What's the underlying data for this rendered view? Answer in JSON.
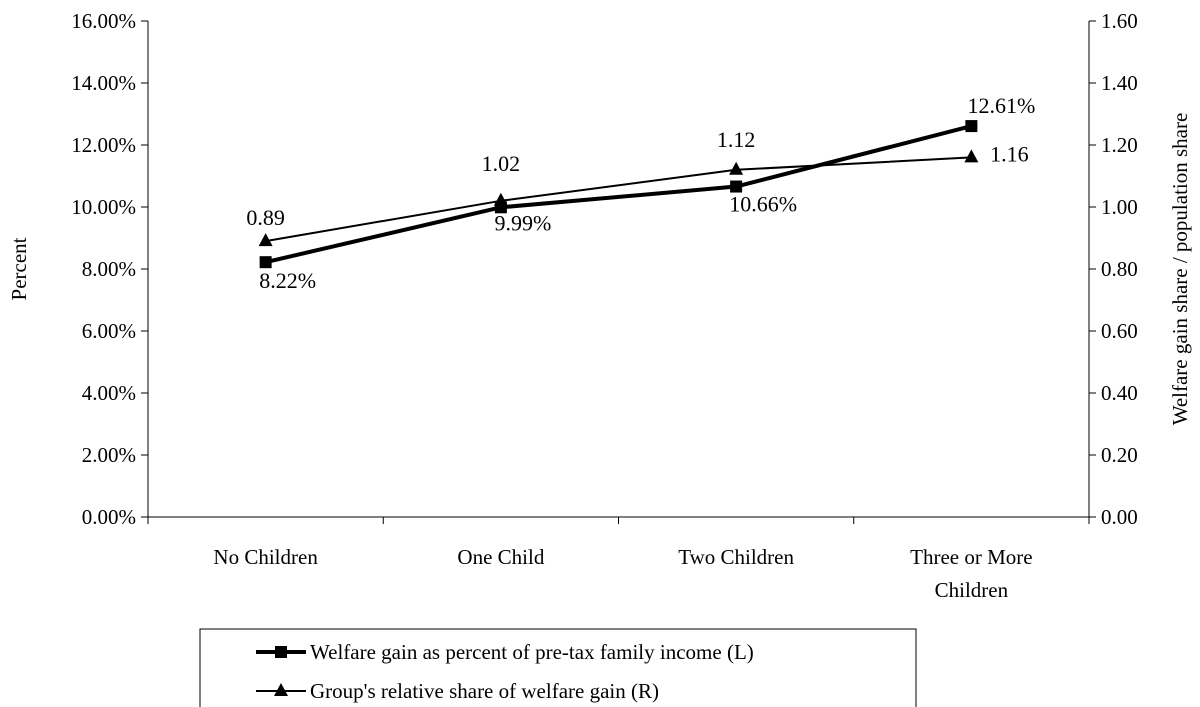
{
  "chart_data": {
    "type": "line",
    "categories": [
      [
        "No Children"
      ],
      [
        "One Child"
      ],
      [
        "Two Children"
      ],
      [
        "Three or More",
        "Children"
      ]
    ],
    "y_left": {
      "label": "Percent",
      "ylim": [
        0,
        16
      ],
      "ticks": [
        "0.00%",
        "2.00%",
        "4.00%",
        "6.00%",
        "8.00%",
        "10.00%",
        "12.00%",
        "14.00%",
        "16.00%"
      ]
    },
    "y_right": {
      "label": "Welfare gain share / population share",
      "ylim": [
        0,
        1.6
      ],
      "ticks": [
        "0.00",
        "0.20",
        "0.40",
        "0.60",
        "0.80",
        "1.00",
        "1.20",
        "1.40",
        "1.60"
      ]
    },
    "series": [
      {
        "name": "Welfare gain as percent of pre-tax family income (L)",
        "axis": "left",
        "marker": "square",
        "values": [
          8.22,
          9.99,
          10.66,
          12.61
        ],
        "data_labels": [
          "8.22%",
          "9.99%",
          "10.66%",
          "12.61%"
        ]
      },
      {
        "name": "Group's relative share of welfare gain (R)",
        "axis": "right",
        "marker": "triangle",
        "values": [
          0.89,
          1.02,
          1.12,
          1.16
        ],
        "data_labels": [
          "0.89",
          "1.02",
          "1.12",
          "1.16"
        ]
      }
    ],
    "legend_position": "bottom",
    "grid": false
  }
}
